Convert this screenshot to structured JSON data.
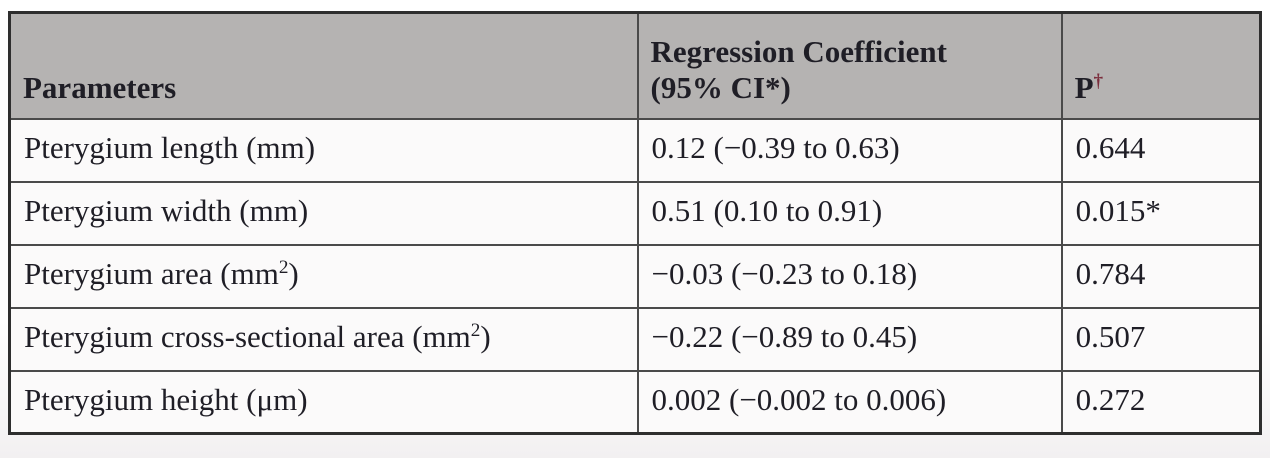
{
  "table": {
    "headers": {
      "parameters": "Parameters",
      "coefficient_line1": "Regression Coefficient",
      "coefficient_line2": "(95% CI*)",
      "p_base": "P",
      "p_sup": "†"
    },
    "rows": [
      {
        "param_pre": "Pterygium length (mm)",
        "param_sup": "",
        "param_post": "",
        "coefficient": "0.12 (−0.39 to 0.63)",
        "p": "0.644"
      },
      {
        "param_pre": "Pterygium width (mm)",
        "param_sup": "",
        "param_post": "",
        "coefficient": "0.51 (0.10 to 0.91)",
        "p": "0.015*"
      },
      {
        "param_pre": "Pterygium area (mm",
        "param_sup": "2",
        "param_post": ")",
        "coefficient": "−0.03 (−0.23 to 0.18)",
        "p": "0.784"
      },
      {
        "param_pre": "Pterygium cross-sectional area (mm",
        "param_sup": "2",
        "param_post": ")",
        "coefficient": "−0.22 (−0.89 to 0.45)",
        "p": "0.507"
      },
      {
        "param_pre": "Pterygium height (μm)",
        "param_sup": "",
        "param_post": "",
        "coefficient": "0.002 (−0.002 to 0.006)",
        "p": "0.272"
      }
    ],
    "colors": {
      "header_bg": "#b5b3b2",
      "row_bg": "#fbfafa",
      "border": "#4a4a4a",
      "outer_border": "#2e2e2e",
      "text": "#1f1e26",
      "dagger": "#7b2d3c"
    }
  }
}
